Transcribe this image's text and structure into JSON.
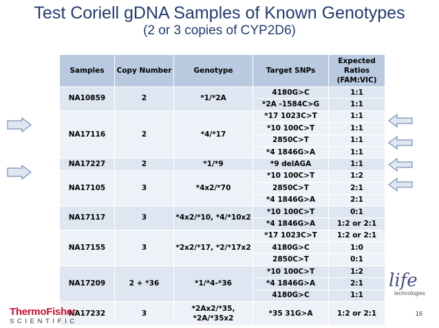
{
  "title": "Test Coriell gDNA Samples of Known Genotypes",
  "subtitle": "(2 or 3 copies of CYP2D6)",
  "table": {
    "headers": [
      "Samples",
      "Copy Number",
      "Genotype",
      "Target SNPs",
      "Expected Ratios (FAM:VIC)"
    ],
    "groups": [
      {
        "sample": "NA10859",
        "copy": "2",
        "genotype": "*1/*2A",
        "rows": [
          [
            "4180G>C",
            "1:1"
          ],
          [
            "*2A -1584C>G",
            "1:1"
          ]
        ]
      },
      {
        "sample": "NA17116",
        "copy": "2",
        "genotype": "*4/*17",
        "rows": [
          [
            "*17 1023C>T",
            "1:1"
          ],
          [
            "*10 100C>T",
            "1:1"
          ],
          [
            "2850C>T",
            "1:1"
          ],
          [
            "*4 1846G>A",
            "1:1"
          ]
        ]
      },
      {
        "sample": "NA17227",
        "copy": "2",
        "genotype": "*1/*9",
        "rows": [
          [
            "*9 delAGA",
            "1:1"
          ]
        ]
      },
      {
        "sample": "NA17105",
        "copy": "3",
        "genotype": "*4x2/*70",
        "rows": [
          [
            "*10 100C>T",
            "1:2"
          ],
          [
            "2850C>T",
            "2:1"
          ],
          [
            "*4 1846G>A",
            "2:1"
          ]
        ]
      },
      {
        "sample": "NA17117",
        "copy": "3",
        "genotype": "*4x2/*10, *4/*10x2",
        "rows": [
          [
            "*10 100C>T",
            "0:1"
          ],
          [
            "*4 1846G>A",
            "1:2 or 2:1"
          ]
        ]
      },
      {
        "sample": "NA17155",
        "copy": "3",
        "genotype": "*2x2/*17, *2/*17x2",
        "rows": [
          [
            "*17 1023C>T",
            "1:2 or 2:1"
          ],
          [
            "4180G>C",
            "1:0"
          ],
          [
            "2850C>T",
            "0:1"
          ]
        ]
      },
      {
        "sample": "NA17209",
        "copy": "2 + *36",
        "genotype": "*1/*4-*36",
        "rows": [
          [
            "*10 100C>T",
            "1:2"
          ],
          [
            "*4 1846G>A",
            "2:1"
          ],
          [
            "4180G>C",
            "1:1"
          ]
        ]
      },
      {
        "sample": "NA17232",
        "copy": "3",
        "genotype": "*2Ax2/*35, *2A/*35x2",
        "rows": [
          [
            "*35 31G>A",
            "1:2 or 2:1"
          ]
        ]
      }
    ]
  },
  "logos": {
    "thermo_name": "ThermoFisher",
    "thermo_tagline": "SCIENTIFIC",
    "life_name": "life",
    "life_tagline": "technologies"
  },
  "page_number": "16",
  "colors": {
    "title": "#1f3b6e",
    "header_fill": "#b9c9df",
    "row_fill_odd": "#dee6f1",
    "row_fill_even": "#eef2f8",
    "arrow_fill": "#dfe7f3",
    "arrow_stroke": "#5a78a8",
    "thermo_red": "#c8102e"
  }
}
